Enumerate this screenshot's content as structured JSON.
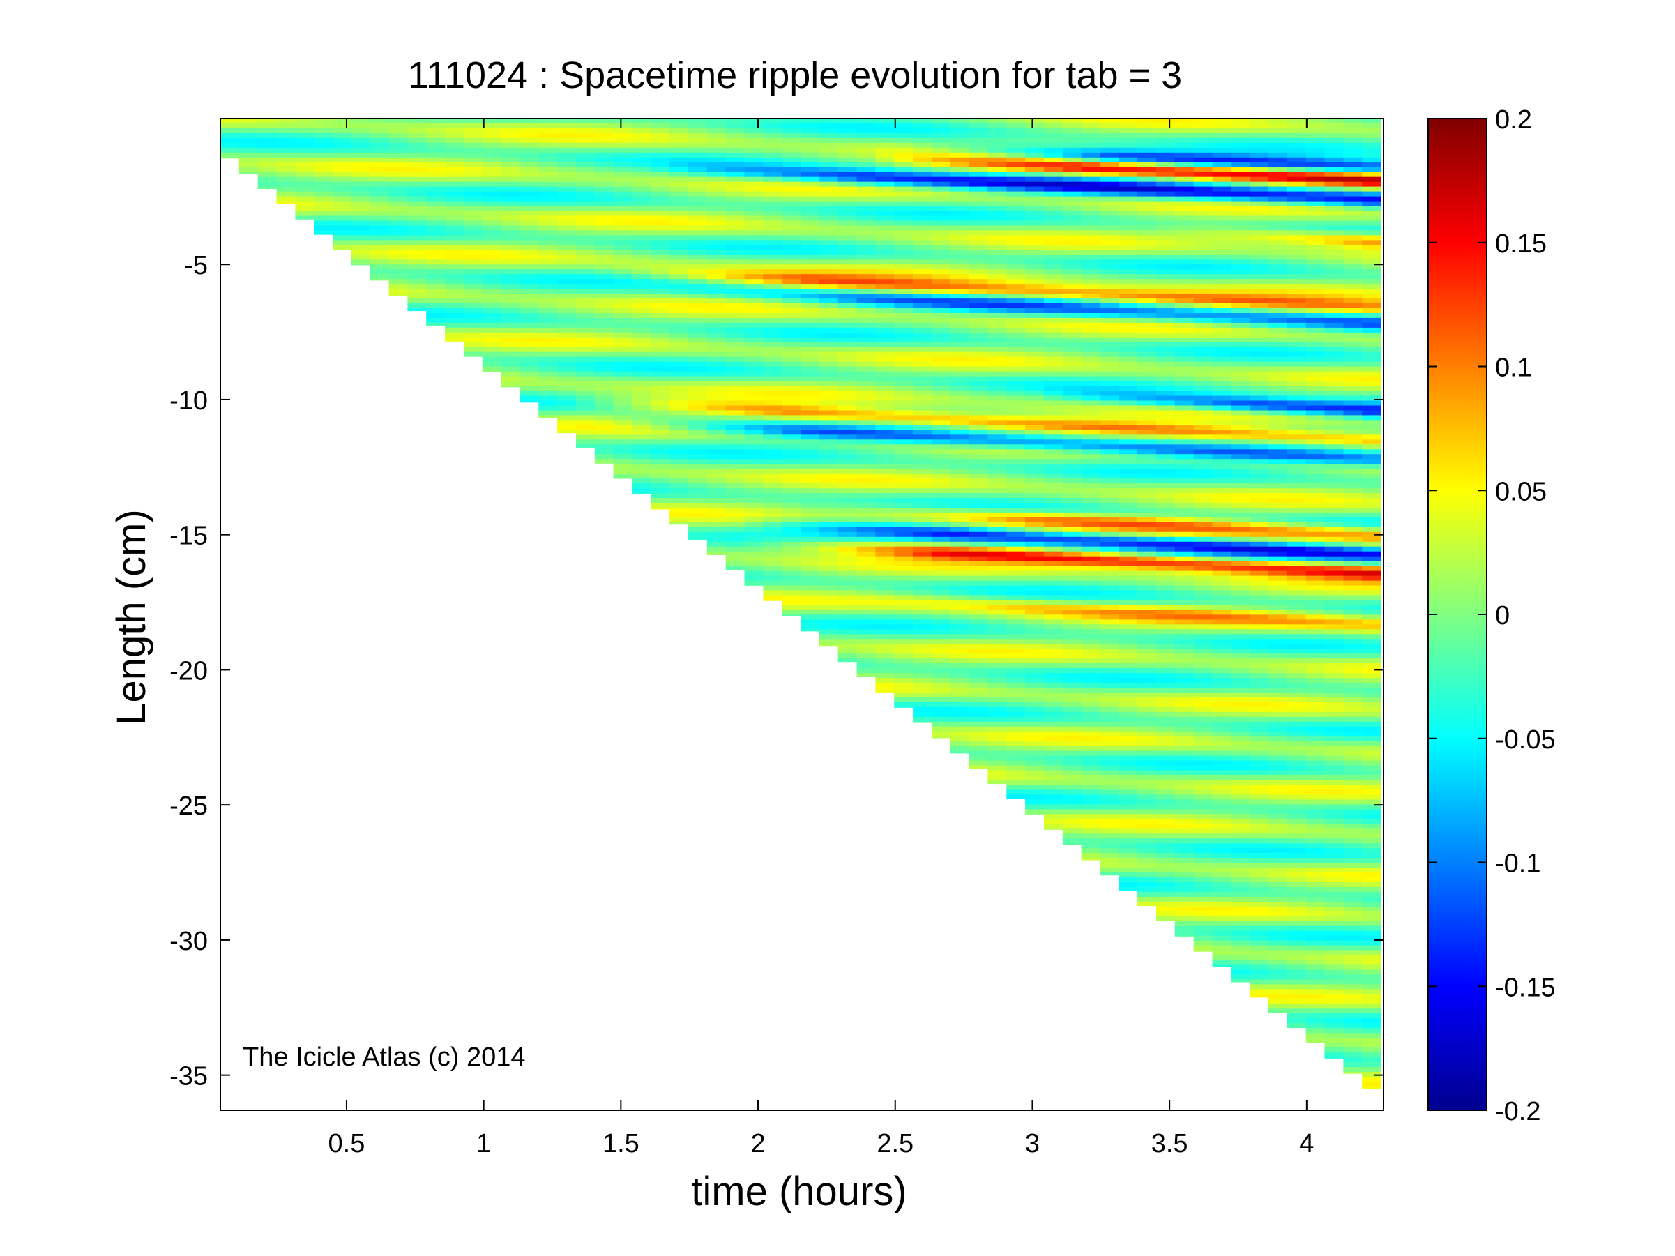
{
  "chart_data": {
    "type": "heatmap",
    "title": "111024 : Spacetime ripple evolution for tab = 3",
    "xlabel": "time (hours)",
    "ylabel": "Length (cm)",
    "xlim": [
      0.04,
      4.28
    ],
    "ylim": [
      -36.3,
      0.4
    ],
    "xticks": [
      0.5,
      1,
      1.5,
      2,
      2.5,
      3,
      3.5,
      4
    ],
    "xtick_labels": [
      "0.5",
      "1",
      "1.5",
      "2",
      "2.5",
      "3",
      "3.5",
      "4"
    ],
    "yticks": [
      -5,
      -10,
      -15,
      -20,
      -25,
      -30,
      -35
    ],
    "ytick_labels": [
      "-5",
      "-10",
      "-15",
      "-20",
      "-25",
      "-30",
      "-35"
    ],
    "colorbar": {
      "colormap": "jet",
      "clim": [
        -0.2,
        0.2
      ],
      "ticks": [
        0.2,
        0.15,
        0.1,
        0.05,
        0,
        -0.05,
        -0.1,
        -0.15,
        -0.2
      ],
      "tick_labels": [
        "0.2",
        "0.15",
        "0.1",
        "0.05",
        "0",
        "-0.05",
        "-0.1",
        "-0.15",
        "-0.2"
      ]
    },
    "grid": false,
    "data_extent": {
      "description_hidden": true,
      "start_time_h": 0.04,
      "end_time_h": 4.27,
      "min_length_cm": -35.5
    },
    "ripple_bands": [
      {
        "y0": -1.4,
        "slope": -0.45,
        "amp": -0.15,
        "t_start": 2.5
      },
      {
        "y0": -1.9,
        "slope": -0.45,
        "amp": 0.16,
        "t_start": 2.4
      },
      {
        "y0": -2.6,
        "slope": -0.45,
        "amp": -0.14,
        "t_start": 1.6
      },
      {
        "y0": -4.1,
        "slope": -0.5,
        "amp": 0.12,
        "t_start": 3.4
      },
      {
        "y0": -6.6,
        "slope": -0.5,
        "amp": 0.1,
        "t_start": 1.4
      },
      {
        "y0": -7.2,
        "slope": -0.5,
        "amp": -0.09,
        "t_start": 1.6
      },
      {
        "y0": -10.4,
        "slope": -0.5,
        "amp": -0.14,
        "t_start": 3.0
      },
      {
        "y0": -11.5,
        "slope": -0.5,
        "amp": 0.12,
        "t_start": 1.3
      },
      {
        "y0": -12.2,
        "slope": -0.5,
        "amp": -0.13,
        "t_start": 1.4
      },
      {
        "y0": -15.0,
        "slope": -0.5,
        "amp": 0.1,
        "t_start": 2.2
      },
      {
        "y0": -15.7,
        "slope": -0.5,
        "amp": -0.15,
        "t_start": 1.9
      },
      {
        "y0": -16.4,
        "slope": -0.5,
        "amp": 0.16,
        "t_start": 1.9
      },
      {
        "y0": -18.3,
        "slope": -0.5,
        "amp": 0.06,
        "t_start": 2.2
      }
    ]
  },
  "watermark": "The Icicle Atlas (c) 2014"
}
